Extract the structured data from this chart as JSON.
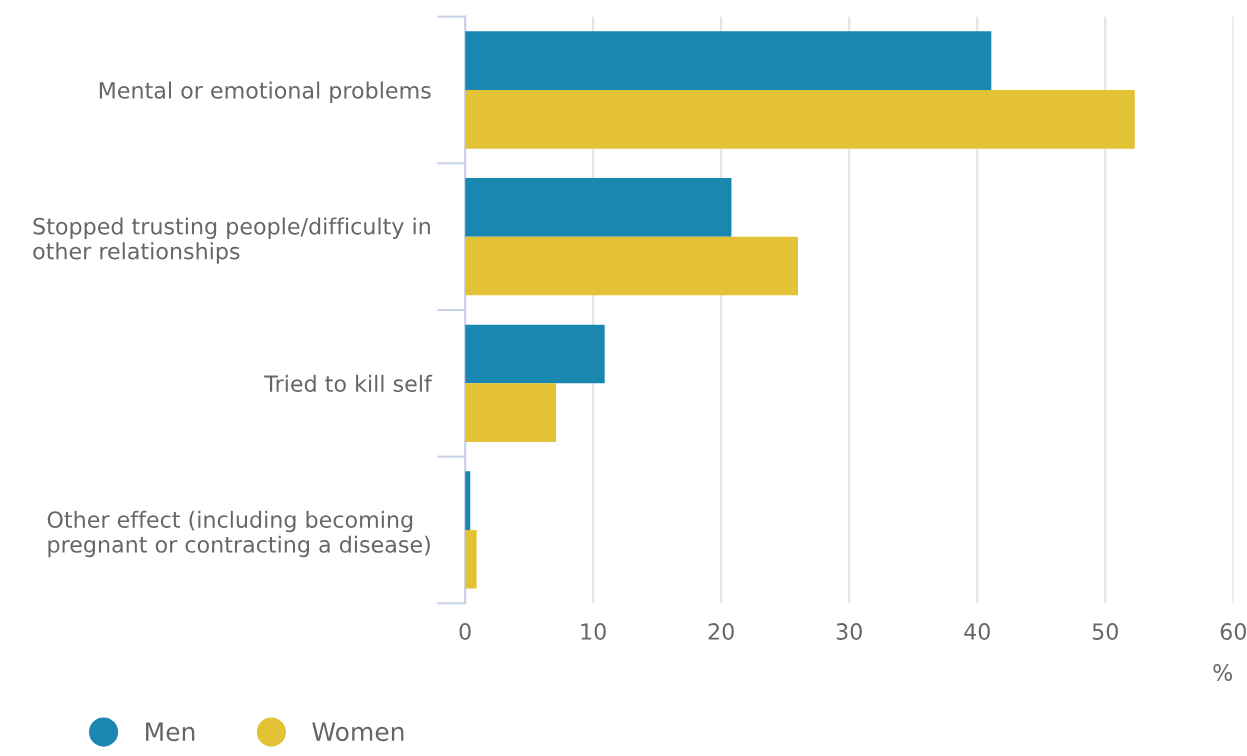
{
  "chart_data": {
    "type": "bar",
    "orientation": "horizontal",
    "categories": [
      "Mental or emotional problems",
      "Stopped trusting people/difficulty in\nother relationships",
      "Tried to kill self",
      "Other effect (including becoming\npregnant or contracting a disease)"
    ],
    "series": [
      {
        "name": "Men",
        "color": "#1a87b0",
        "values": [
          41.1,
          20.8,
          10.9,
          0.4
        ]
      },
      {
        "name": "Women",
        "color": "#e3c235",
        "values": [
          52.3,
          26.0,
          7.1,
          0.9
        ]
      }
    ],
    "xlim": [
      0,
      60
    ],
    "xticks": [
      0,
      10,
      20,
      30,
      40,
      50,
      60
    ],
    "xlabel": "%",
    "grid": "x",
    "legend": "bottom"
  }
}
